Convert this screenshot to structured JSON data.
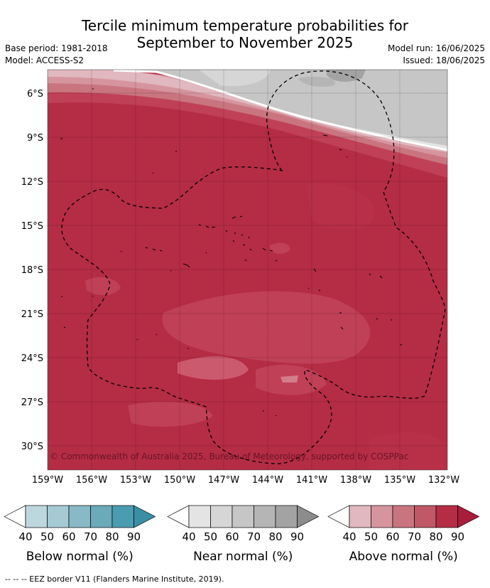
{
  "title": {
    "line1": "Tercile minimum temperature probabilities for",
    "line2": "September to November 2025"
  },
  "meta": {
    "base_period": "Base period: 1981-2018",
    "model": "Model: ACCESS-S2",
    "model_run": "Model run: 16/06/2025",
    "issued": "Issued: 18/06/2025"
  },
  "map": {
    "copyright": "© Commonwealth of Australia 2025, Bureau of Meteorology, supported by COSPPac",
    "lat_labels": [
      "6°S",
      "9°S",
      "12°S",
      "15°S",
      "18°S",
      "21°S",
      "24°S",
      "27°S",
      "30°S"
    ],
    "lon_labels": [
      "159°W",
      "156°W",
      "153°W",
      "150°W",
      "147°W",
      "144°W",
      "141°W",
      "138°W",
      "135°W",
      "132°W"
    ]
  },
  "colorbars": [
    {
      "title": "Below normal (%)",
      "ticks": [
        "40",
        "50",
        "60",
        "70",
        "80",
        "90"
      ],
      "colors": [
        "#ffffff",
        "#bdd7de",
        "#a5cad3",
        "#89b8c6",
        "#6aaab9",
        "#4a9db0",
        "#3a8fa5"
      ]
    },
    {
      "title": "Near normal (%)",
      "ticks": [
        "40",
        "50",
        "60",
        "70",
        "80",
        "90"
      ],
      "colors": [
        "#ffffff",
        "#e4e4e4",
        "#d6d6d6",
        "#c6c6c6",
        "#b5b5b5",
        "#a3a3a3",
        "#8c8c8c"
      ]
    },
    {
      "title": "Above normal (%)",
      "ticks": [
        "40",
        "50",
        "60",
        "70",
        "80",
        "90"
      ],
      "colors": [
        "#ffffff",
        "#e1b8bf",
        "#d6959e",
        "#c97580",
        "#c05867",
        "#b52c45",
        "#a81c3c"
      ]
    }
  ],
  "footnote": "-- -- -- EEZ border V11 (Flanders Marine Institute, 2019)."
}
